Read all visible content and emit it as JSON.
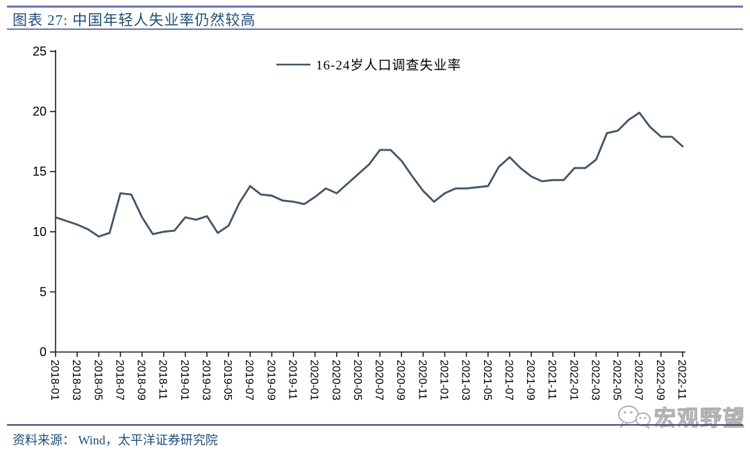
{
  "header": {
    "title": "图表 27:  中国年轻人失业率仍然较高"
  },
  "footer": {
    "source": "资料来源： Wind，太平洋证券研究院"
  },
  "watermark": {
    "label": "宏观野望",
    "icon": "wechat-icon"
  },
  "colors": {
    "line": "#44546a",
    "title_text": "#1f4e79",
    "source_text": "#1f4e79",
    "top_rule": "#6e73a8",
    "footer_rule": "#3f4a6d",
    "axis": "#1a1a1a",
    "tick_label": "#000000",
    "watermark": "#b0b0b0"
  },
  "chart_data": {
    "type": "line",
    "title": "",
    "legend": [
      "16-24岁人口调查失业率"
    ],
    "legend_position": "top-center",
    "grid": false,
    "ylim": [
      0,
      25
    ],
    "yticks": [
      0,
      5,
      10,
      15,
      20,
      25
    ],
    "xtick_every": 2,
    "x": [
      "2018-01",
      "2018-02",
      "2018-03",
      "2018-04",
      "2018-05",
      "2018-06",
      "2018-07",
      "2018-08",
      "2018-09",
      "2018-10",
      "2018-11",
      "2018-12",
      "2019-01",
      "2019-02",
      "2019-03",
      "2019-04",
      "2019-05",
      "2019-06",
      "2019-07",
      "2019-08",
      "2019-09",
      "2019-10",
      "2019-11",
      "2019-12",
      "2020-01",
      "2020-02",
      "2020-03",
      "2020-04",
      "2020-05",
      "2020-06",
      "2020-07",
      "2020-08",
      "2020-09",
      "2020-10",
      "2020-11",
      "2020-12",
      "2021-01",
      "2021-02",
      "2021-03",
      "2021-04",
      "2021-05",
      "2021-06",
      "2021-07",
      "2021-08",
      "2021-09",
      "2021-10",
      "2021-11",
      "2021-12",
      "2022-01",
      "2022-02",
      "2022-03",
      "2022-04",
      "2022-05",
      "2022-06",
      "2022-07",
      "2022-08",
      "2022-09",
      "2022-10",
      "2022-11"
    ],
    "series": [
      {
        "name": "16-24岁人口调查失业率",
        "values": [
          11.2,
          10.9,
          10.6,
          10.2,
          9.6,
          9.9,
          13.2,
          13.1,
          11.2,
          9.8,
          10.0,
          10.1,
          11.2,
          11.0,
          11.3,
          9.9,
          10.5,
          12.4,
          13.8,
          13.1,
          13.0,
          12.6,
          12.5,
          12.3,
          12.9,
          13.6,
          13.2,
          14.0,
          14.8,
          15.6,
          16.8,
          16.8,
          15.9,
          14.6,
          13.4,
          12.5,
          13.2,
          13.6,
          13.6,
          13.7,
          13.8,
          15.4,
          16.2,
          15.3,
          14.6,
          14.2,
          14.3,
          14.3,
          15.3,
          15.3,
          16.0,
          18.2,
          18.4,
          19.3,
          19.9,
          18.7,
          17.9,
          17.9,
          17.1
        ]
      }
    ]
  }
}
